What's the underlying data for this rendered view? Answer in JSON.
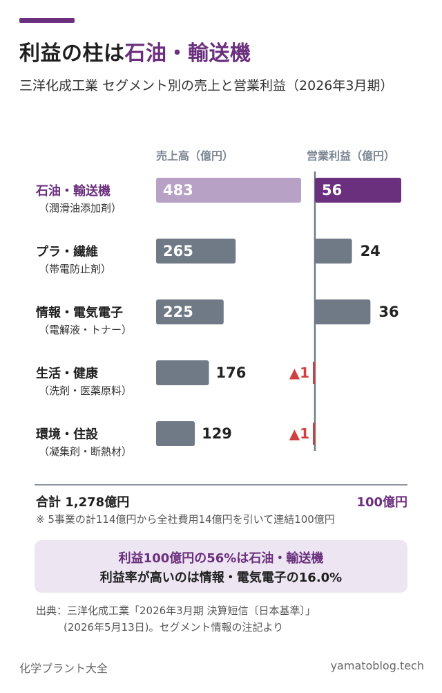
{
  "header": {
    "title_prefix": "利益の柱は",
    "title_highlight": "石油・輸送機",
    "subtitle": "三洋化成工業 セグメント別の売上と営業利益（2026年3月期）"
  },
  "colors": {
    "accent": "#6a2f7d",
    "accent_light": "#b7a1c5",
    "bar_gray": "#6f7a86",
    "negative": "#d14040",
    "callout_bg": "#ede6f2"
  },
  "chart_data": {
    "type": "bar",
    "categories": [
      "石油・輸送機",
      "プラ・繊維",
      "情報・電気電子",
      "生活・健康",
      "環境・住設"
    ],
    "subcategories": [
      "（潤滑油添加剤）",
      "（帯電防止剤）",
      "（電解液・トナー）",
      "（洗剤・医薬原料）",
      "（凝集剤・断熱材）"
    ],
    "series": [
      {
        "name": "売上高（億円）",
        "values": [
          483,
          265,
          225,
          176,
          129
        ],
        "labels": [
          "483",
          "265",
          "225",
          "176",
          "129"
        ]
      },
      {
        "name": "営業利益（億円）",
        "values": [
          56,
          24,
          36,
          -1,
          -1
        ],
        "labels": [
          "56",
          "24",
          "36",
          "▲1",
          "▲1"
        ]
      }
    ],
    "highlight_index": 0,
    "sales_xlim": [
      0,
      483
    ],
    "profit_xlim": [
      0,
      56
    ]
  },
  "summary": {
    "total_label": "合計 1,278億円",
    "profit_total": "100億円",
    "note": "※ 5事業の計114億円から全社費用14億円を引いて連結100億円"
  },
  "callout": {
    "line1": "利益100億円の56%は石油・輸送機",
    "line2": "利益率が高いのは情報・電気電子の16.0%"
  },
  "source": {
    "line1": "出典：三洋化成工業「2026年3月期 決算短信〔日本基準〕」",
    "line2": "(2026年5月13日)。セグメント情報の注記より"
  },
  "footer": {
    "left": "化学プラント大全",
    "right": "yamatoblog.tech"
  }
}
